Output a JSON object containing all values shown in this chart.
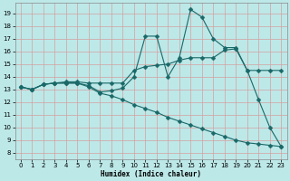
{
  "xlabel": "Humidex (Indice chaleur)",
  "xlim": [
    -0.5,
    23.5
  ],
  "ylim": [
    7.5,
    19.8
  ],
  "xticks": [
    0,
    1,
    2,
    3,
    4,
    5,
    6,
    7,
    8,
    9,
    10,
    11,
    12,
    13,
    14,
    15,
    16,
    17,
    18,
    19,
    20,
    21,
    22,
    23
  ],
  "yticks": [
    8,
    9,
    10,
    11,
    12,
    13,
    14,
    15,
    16,
    17,
    18,
    19
  ],
  "background_color": "#bde8e8",
  "grid_color": "#d4a0a0",
  "line_color": "#1a6868",
  "line1_x": [
    0,
    1,
    2,
    3,
    4,
    5,
    6,
    7,
    8,
    9,
    10,
    11,
    12,
    13,
    14,
    15,
    16,
    17,
    18,
    19,
    20,
    21,
    22,
    23
  ],
  "line1_y": [
    13.2,
    13.0,
    13.4,
    13.5,
    13.5,
    13.5,
    13.3,
    12.8,
    12.9,
    13.1,
    14.0,
    17.2,
    17.2,
    14.0,
    15.5,
    19.3,
    18.7,
    17.0,
    16.3,
    16.3,
    14.5,
    12.2,
    10.0,
    8.5
  ],
  "line2_x": [
    0,
    1,
    2,
    3,
    4,
    5,
    6,
    7,
    8,
    9,
    10,
    11,
    12,
    13,
    14,
    15,
    16,
    17,
    18,
    19,
    20,
    21,
    22,
    23
  ],
  "line2_y": [
    13.2,
    13.0,
    13.4,
    13.5,
    13.6,
    13.6,
    13.5,
    13.5,
    13.5,
    13.5,
    14.5,
    14.8,
    14.9,
    15.0,
    15.3,
    15.5,
    15.5,
    15.5,
    16.1,
    16.2,
    14.5,
    14.5,
    14.5,
    14.5
  ],
  "line3_x": [
    0,
    1,
    2,
    3,
    4,
    5,
    6,
    7,
    8,
    9,
    10,
    11,
    12,
    13,
    14,
    15,
    16,
    17,
    18,
    19,
    20,
    21,
    22,
    23
  ],
  "line3_y": [
    13.2,
    13.0,
    13.4,
    13.5,
    13.5,
    13.5,
    13.2,
    12.7,
    12.5,
    12.2,
    11.8,
    11.5,
    11.2,
    10.8,
    10.5,
    10.2,
    9.9,
    9.6,
    9.3,
    9.0,
    8.8,
    8.7,
    8.6,
    8.5
  ]
}
